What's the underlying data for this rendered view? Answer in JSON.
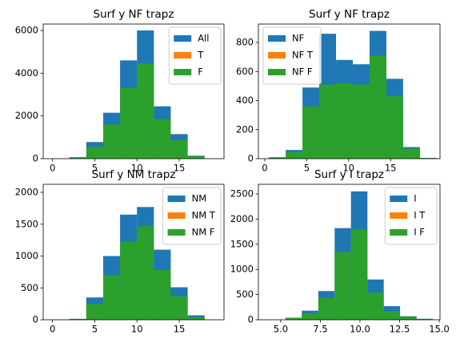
{
  "chart_data": [
    {
      "type": "histogram",
      "title": "Surf y NF trapz",
      "bins": [
        0,
        2,
        4,
        6,
        8,
        10,
        12,
        14,
        16,
        18,
        20
      ],
      "series": [
        {
          "name": "All",
          "color": "#1f77b4",
          "values": [
            5,
            70,
            780,
            2150,
            4600,
            6000,
            2450,
            1150,
            140,
            0
          ]
        },
        {
          "name": "T",
          "color": "#ff7f0e",
          "values": [
            0,
            0,
            0,
            0,
            0,
            0,
            0,
            0,
            0,
            0
          ]
        },
        {
          "name": "F",
          "color": "#2ca02c",
          "values": [
            5,
            60,
            550,
            1600,
            3300,
            4450,
            1850,
            870,
            120,
            0
          ]
        }
      ],
      "xlim": [
        -1.1,
        20.3
      ],
      "ylim": [
        0,
        6300
      ],
      "xticks": [
        0,
        5,
        10,
        15
      ],
      "yticks": [
        0,
        2000,
        4000,
        6000
      ],
      "legend": "upper right"
    },
    {
      "type": "histogram",
      "title": "Surf y NF trapz",
      "bins": [
        0.5,
        2.5,
        4.5,
        6.5,
        8.5,
        10.5,
        12.5,
        14.5,
        16.5,
        18.5,
        20.5
      ],
      "series": [
        {
          "name": "NF",
          "color": "#1f77b4",
          "values": [
            10,
            60,
            490,
            860,
            680,
            650,
            880,
            550,
            80,
            5
          ]
        },
        {
          "name": "NF T",
          "color": "#ff7f0e",
          "values": [
            0,
            0,
            0,
            0,
            0,
            0,
            0,
            0,
            0,
            0
          ]
        },
        {
          "name": "NF F",
          "color": "#2ca02c",
          "values": [
            8,
            45,
            360,
            510,
            520,
            510,
            710,
            430,
            70,
            4
          ]
        }
      ],
      "xlim": [
        -0.76,
        20.9
      ],
      "ylim": [
        0,
        927
      ],
      "xticks": [
        0,
        5,
        10,
        15
      ],
      "yticks": [
        0,
        200,
        400,
        600,
        800
      ],
      "legend": "upper left"
    },
    {
      "type": "histogram",
      "title": "Surf y NM trapz",
      "bins": [
        0,
        2,
        4,
        6,
        8,
        10,
        12,
        14,
        16,
        18,
        20
      ],
      "series": [
        {
          "name": "NM",
          "color": "#1f77b4",
          "values": [
            2,
            15,
            350,
            1000,
            1650,
            1770,
            1100,
            510,
            70,
            0
          ]
        },
        {
          "name": "NM T",
          "color": "#ff7f0e",
          "values": [
            0,
            0,
            0,
            0,
            0,
            0,
            0,
            50,
            0,
            0
          ]
        },
        {
          "name": "NM F",
          "color": "#2ca02c",
          "values": [
            2,
            12,
            250,
            700,
            1220,
            1470,
            780,
            370,
            40,
            0
          ]
        }
      ],
      "xlim": [
        -1.1,
        20.3
      ],
      "ylim": [
        0,
        2126
      ],
      "xticks": [
        0,
        5,
        10,
        15
      ],
      "yticks": [
        0,
        500,
        1000,
        1500,
        2000
      ],
      "legend": "upper right"
    },
    {
      "type": "histogram",
      "title": "Surf y I trapz",
      "bins": [
        5.3,
        6.33,
        7.37,
        8.4,
        9.43,
        10.47,
        11.5,
        12.53,
        13.57,
        14.6
      ],
      "series": [
        {
          "name": "I",
          "color": "#1f77b4",
          "values": [
            40,
            180,
            570,
            1820,
            2550,
            800,
            270,
            70,
            20
          ]
        },
        {
          "name": "I T",
          "color": "#ff7f0e",
          "values": [
            0,
            0,
            0,
            0,
            0,
            0,
            0,
            0,
            0
          ]
        },
        {
          "name": "I F",
          "color": "#2ca02c",
          "values": [
            35,
            130,
            430,
            1350,
            1800,
            540,
            170,
            60,
            15
          ]
        }
      ],
      "xlim": [
        3.59,
        15.05
      ],
      "ylim": [
        0,
        2690
      ],
      "xticks": [
        {
          "value": 5,
          "label": "5.0"
        },
        {
          "value": 7.5,
          "label": "7.5"
        },
        {
          "value": 10,
          "label": "10.0"
        },
        {
          "value": 12.5,
          "label": "12.5"
        },
        {
          "value": 15,
          "label": "15.0"
        }
      ],
      "yticks": [
        0,
        500,
        1000,
        1500,
        2000,
        2500
      ],
      "legend": "upper right"
    }
  ]
}
